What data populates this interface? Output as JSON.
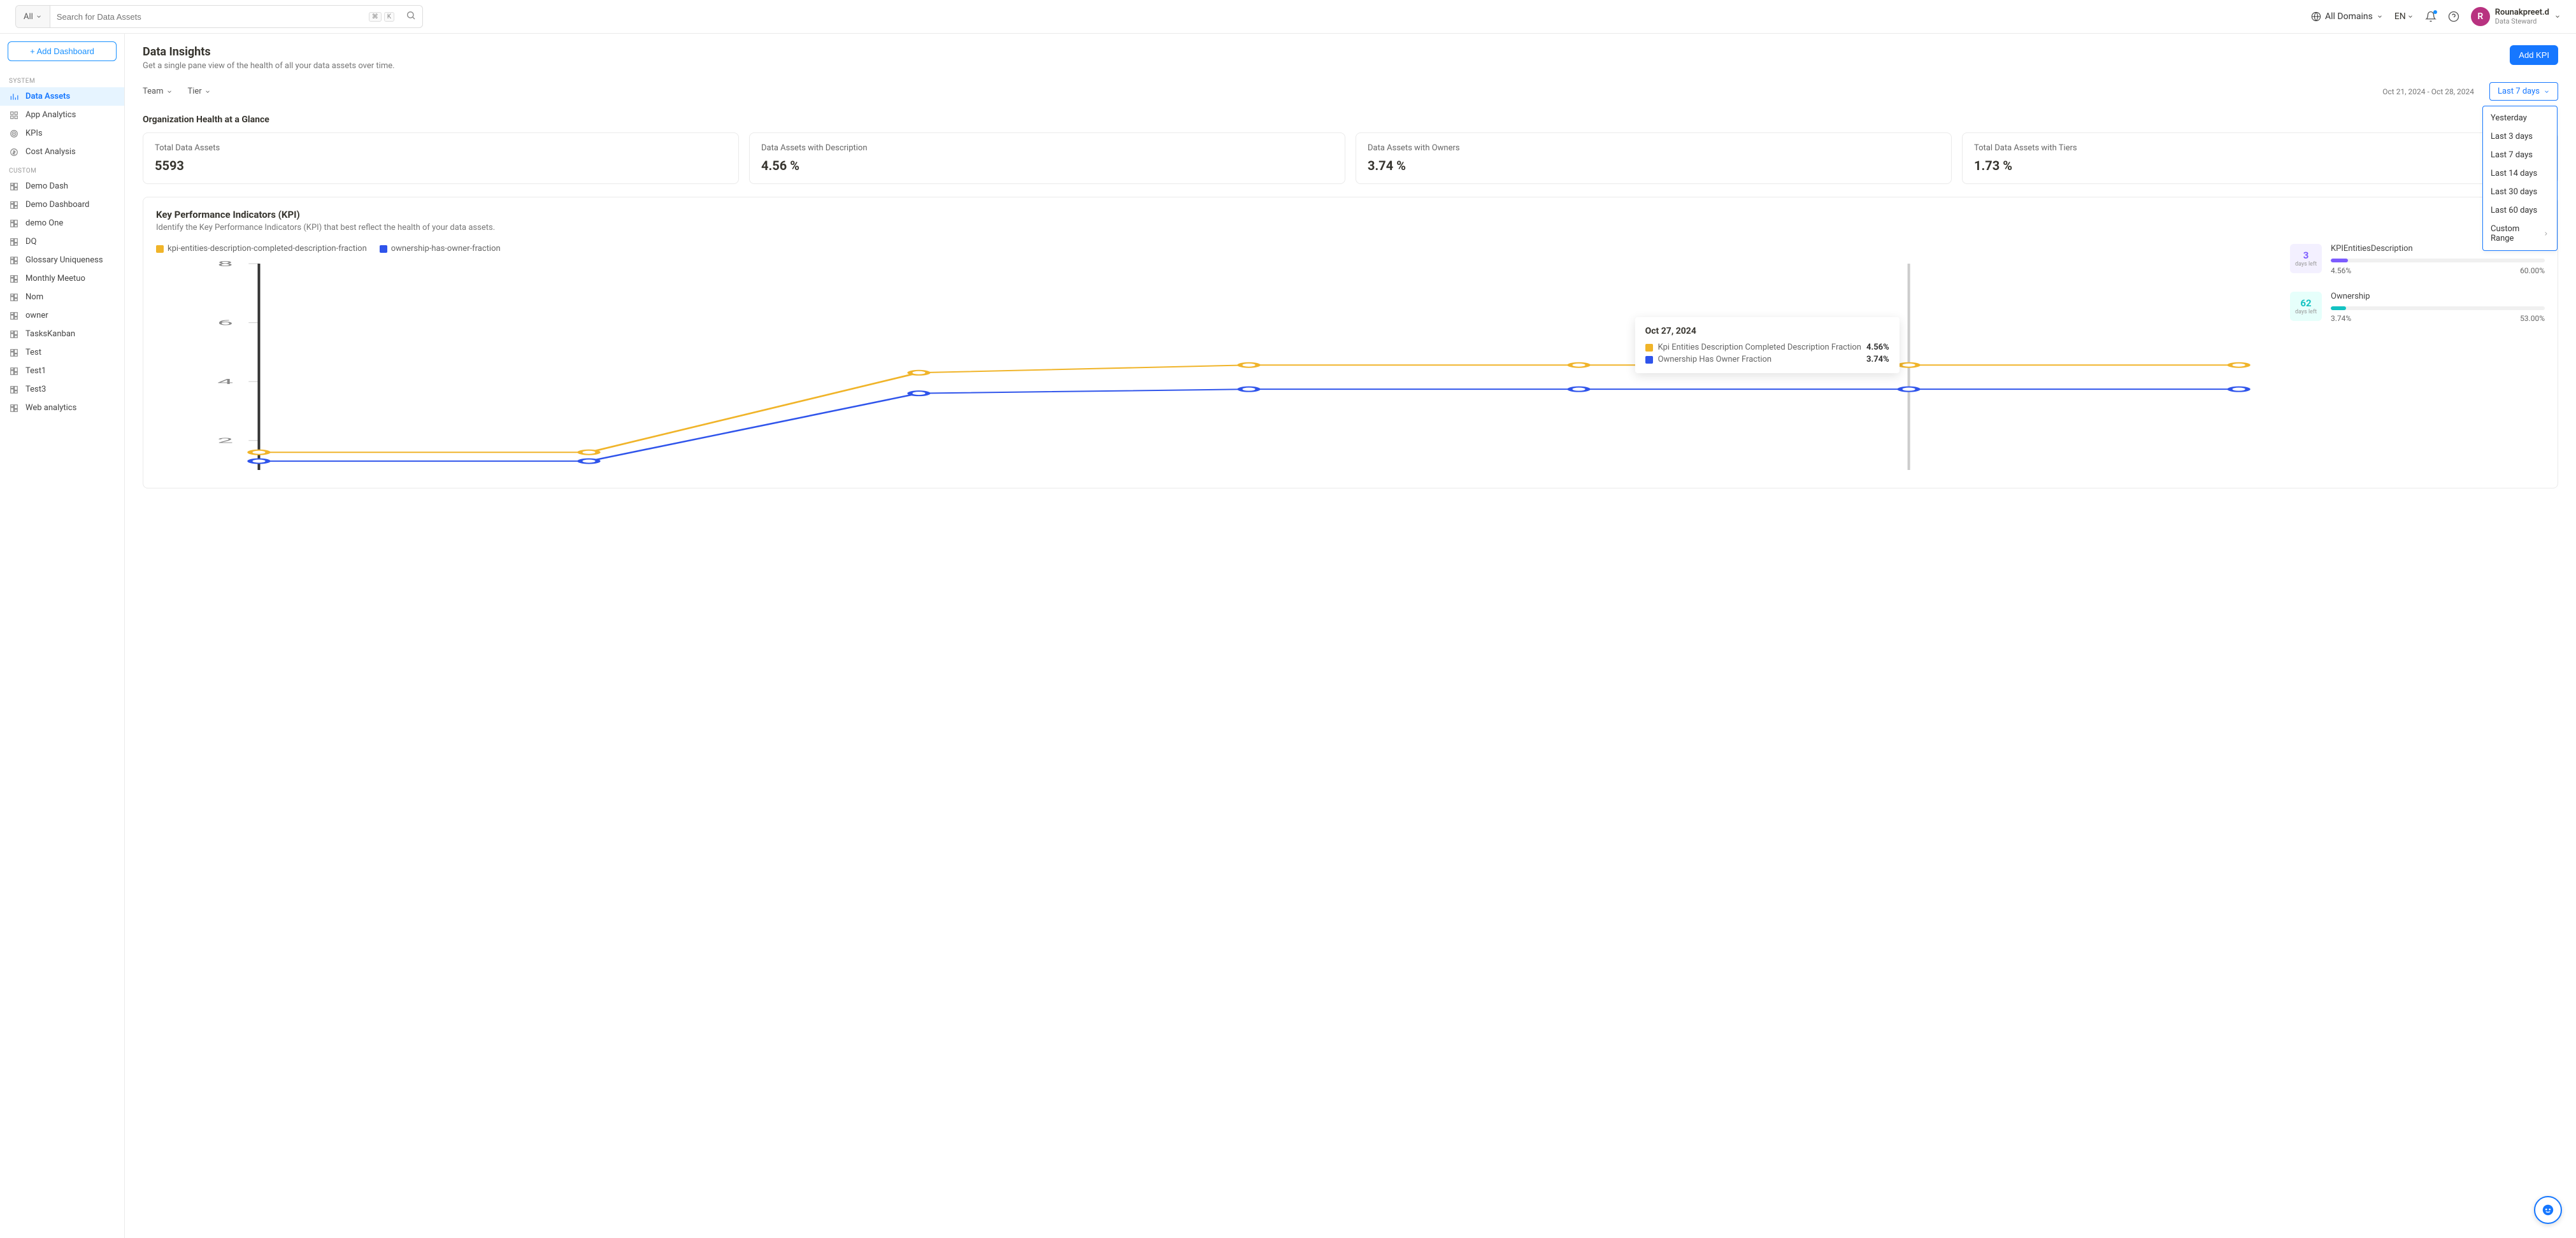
{
  "header": {
    "search_scope": "All",
    "search_placeholder": "Search for Data Assets",
    "kbd1": "⌘",
    "kbd2": "K",
    "domains_label": "All Domains",
    "lang": "EN",
    "user_initial": "R",
    "user_name": "Rounakpreet.d",
    "user_role": "Data Steward"
  },
  "sidebar": {
    "add_dashboard": "+ Add Dashboard",
    "system_label": "SYSTEM",
    "custom_label": "CUSTOM",
    "system": [
      {
        "label": "Data Assets",
        "active": true
      },
      {
        "label": "App Analytics"
      },
      {
        "label": "KPIs"
      },
      {
        "label": "Cost Analysis"
      }
    ],
    "custom": [
      {
        "label": "Demo Dash"
      },
      {
        "label": "Demo Dashboard"
      },
      {
        "label": "demo One"
      },
      {
        "label": "DQ"
      },
      {
        "label": "Glossary Uniqueness"
      },
      {
        "label": "Monthly Meetuo"
      },
      {
        "label": "Nom"
      },
      {
        "label": "owner"
      },
      {
        "label": "TasksKanban"
      },
      {
        "label": "Test"
      },
      {
        "label": "Test1"
      },
      {
        "label": "Test3"
      },
      {
        "label": "Web analytics"
      }
    ]
  },
  "page": {
    "title": "Data Insights",
    "subtitle": "Get a single pane view of the health of all your data assets over time.",
    "add_kpi": "Add KPI"
  },
  "filters": {
    "team": "Team",
    "tier": "Tier",
    "date_range": "Oct 21, 2024 - Oct 28, 2024",
    "selected_range": "Last 7 days",
    "range_options": [
      "Yesterday",
      "Last 3 days",
      "Last 7 days",
      "Last 14 days",
      "Last 30 days",
      "Last 60 days",
      "Custom Range"
    ]
  },
  "glance": {
    "title": "Organization Health at a Glance",
    "cards": [
      {
        "label": "Total Data Assets",
        "value": "5593"
      },
      {
        "label": "Data Assets with Description",
        "value": "4.56 %"
      },
      {
        "label": "Data Assets with Owners",
        "value": "3.74 %"
      },
      {
        "label": "Total Data Assets with Tiers",
        "value": "1.73 %"
      }
    ]
  },
  "kpi": {
    "title": "Key Performance Indicators (KPI)",
    "subtitle": "Identify the Key Performance Indicators (KPI) that best reflect the health of your data assets.",
    "chart": {
      "type": "line",
      "legend": [
        {
          "label": "kpi-entities-description-completed-description-fraction",
          "color": "#f0b429"
        },
        {
          "label": "ownership-has-owner-fraction",
          "color": "#2f54eb"
        }
      ],
      "y_ticks": [
        2,
        4,
        6,
        8
      ],
      "ylim": [
        1,
        8
      ],
      "x_count": 7,
      "series": [
        {
          "color": "#f0b429",
          "values": [
            1.6,
            1.6,
            4.3,
            4.56,
            4.56,
            4.56,
            4.56
          ]
        },
        {
          "color": "#2f54eb",
          "values": [
            1.3,
            1.3,
            3.6,
            3.74,
            3.74,
            3.74,
            3.74
          ]
        }
      ],
      "hover_index": 5,
      "grid_color": "#eeeeee",
      "axis_color": "#cccccc",
      "tooltip": {
        "date": "Oct 27, 2024",
        "rows": [
          {
            "color": "#f0b429",
            "label": "Kpi Entities Description Completed Description Fraction",
            "value": "4.56%"
          },
          {
            "color": "#2f54eb",
            "label": "Ownership Has Owner Fraction",
            "value": "3.74%"
          }
        ]
      }
    },
    "side": [
      {
        "days": "3",
        "days_label": "days left",
        "name": "KPIEntitiesDescription",
        "current": "4.56%",
        "target": "60.00%",
        "fill_pct": 8,
        "color": "#7c5cff",
        "box": "pu"
      },
      {
        "days": "62",
        "days_label": "days left",
        "name": "Ownership",
        "current": "3.74%",
        "target": "53.00%",
        "fill_pct": 7,
        "color": "#13c2c2",
        "box": "cy"
      }
    ]
  }
}
